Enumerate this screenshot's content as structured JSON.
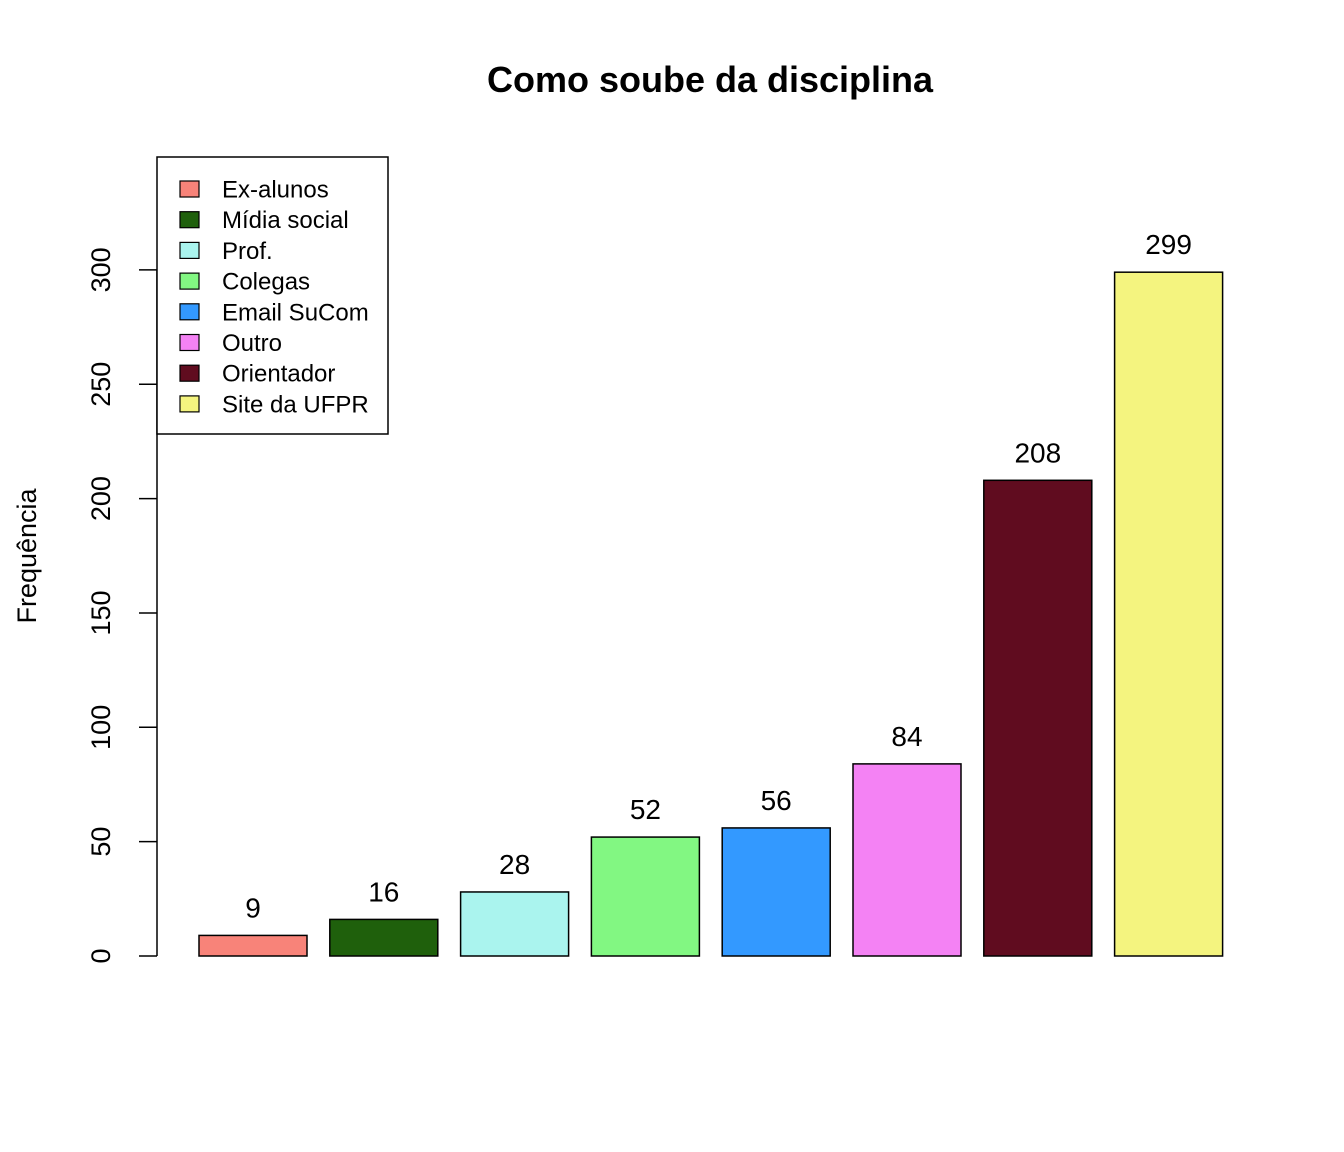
{
  "chart_data": {
    "type": "bar",
    "title": "Como soube da disciplina",
    "xlabel": "",
    "ylabel": "Frequência",
    "ylim": [
      0,
      330
    ],
    "yticks": [
      0,
      50,
      100,
      150,
      200,
      250,
      300
    ],
    "categories": [
      "Ex-alunos",
      "Mídia social",
      "Prof.",
      "Colegas",
      "Email SuCom",
      "Outro",
      "Orientador",
      "Site da UFPR"
    ],
    "values": [
      9,
      16,
      28,
      52,
      56,
      84,
      208,
      299
    ],
    "colors": [
      "#F88379",
      "#1F600C",
      "#AAF4EE",
      "#82F782",
      "#3399FF",
      "#F482F4",
      "#600C1F",
      "#F4F47F"
    ],
    "legend": {
      "placement": "top-left",
      "entries": [
        "Ex-alunos",
        "Mídia social",
        "Prof.",
        "Colegas",
        "Email SuCom",
        "Outro",
        "Orientador",
        "Site da UFPR"
      ]
    },
    "grid": false
  }
}
